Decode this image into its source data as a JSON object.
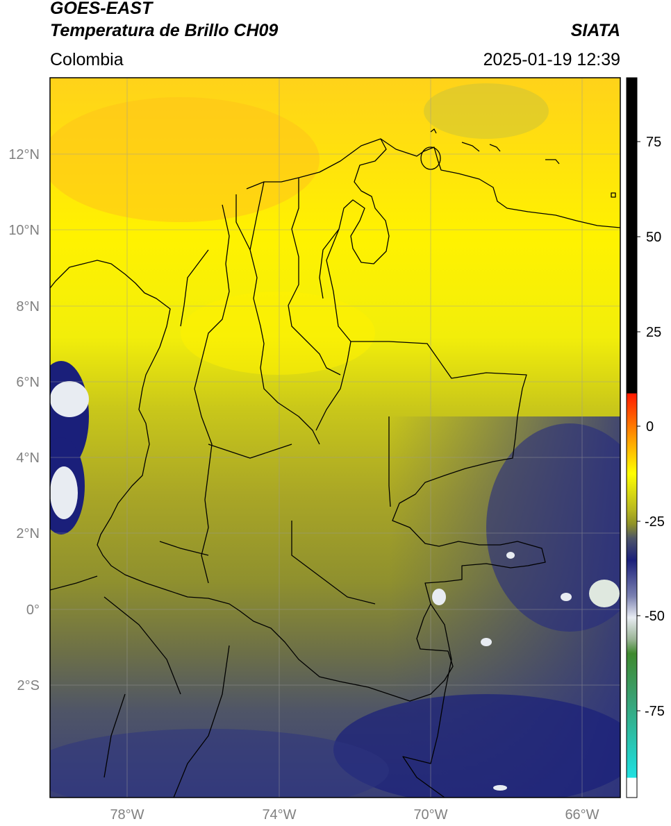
{
  "header": {
    "satellite": "GOES-EAST",
    "product": "Temperatura de Brillo CH09",
    "brand": "SIATA",
    "region": "Colombia",
    "datetime": "2025-01-19 12:39"
  },
  "map": {
    "lat_labels": [
      "12°N",
      "10°N",
      "8°N",
      "6°N",
      "4°N",
      "2°N",
      "0°",
      "2°S"
    ],
    "lon_labels": [
      "78°W",
      "74°W",
      "70°W",
      "66°W"
    ]
  },
  "colorbar": {
    "tick_labels": [
      "75",
      "50",
      "25",
      "0",
      "-25",
      "-50",
      "-75"
    ],
    "colors": [
      "#000000",
      "#ff2a00",
      "#ffff00",
      "#8f9226",
      "#4d5468",
      "#1a1f7a",
      "#e8ecf2",
      "#3f8a2e",
      "#22d4cc",
      "#ffffff"
    ]
  }
}
